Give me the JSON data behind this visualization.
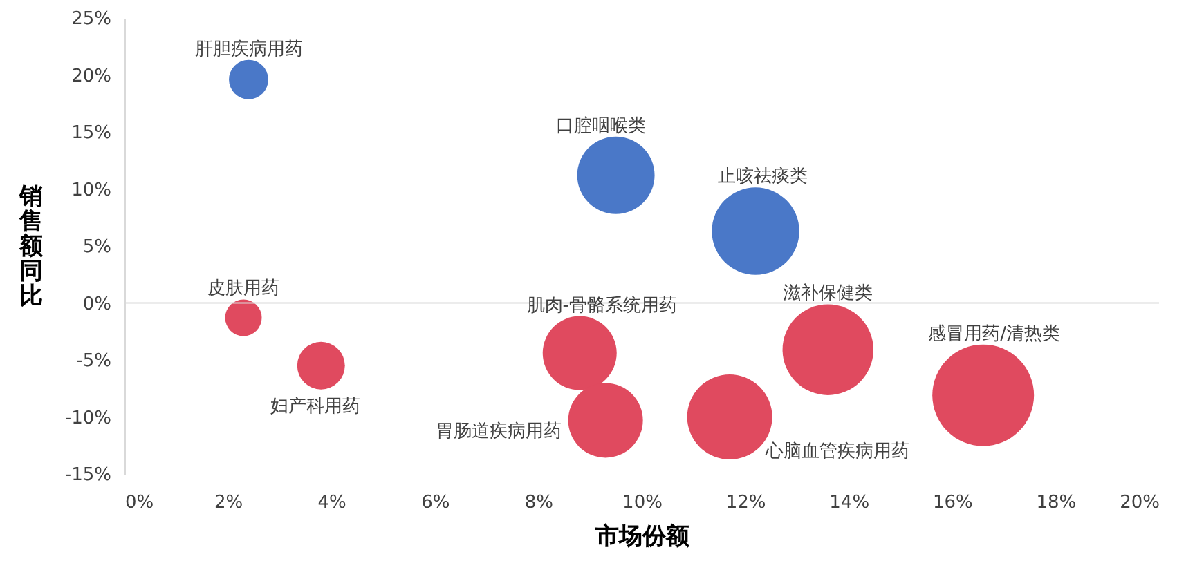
{
  "chart_data": {
    "type": "bubble",
    "xlabel": "市场份额",
    "ylabel": "销售额同比",
    "x": [
      2.4,
      9.5,
      12.2,
      2.3,
      3.8,
      8.8,
      9.3,
      11.7,
      13.6,
      16.6
    ],
    "values": [
      19.6,
      11.2,
      6.3,
      -1.3,
      -5.5,
      -4.4,
      -10.3,
      -10.0,
      -4.1,
      -8.1
    ],
    "sizes": [
      0.15,
      0.58,
      0.74,
      0.13,
      0.22,
      0.53,
      0.54,
      0.7,
      0.8,
      1
    ],
    "colors": [
      "#4a78c8",
      "#4a78c8",
      "#4a78c8",
      "#e04a5f",
      "#e04a5f",
      "#e04a5f",
      "#e04a5f",
      "#e04a5f",
      "#e04a5f",
      "#e04a5f"
    ],
    "annotations": [
      {
        "text": "肝胆疾病用药",
        "x": 2.4,
        "y": 19.6
      },
      {
        "text": "口腔咽喉类",
        "x": 9.5,
        "y": 11.2
      },
      {
        "text": "止咳祛痰类",
        "x": 12.2,
        "y": 6.3
      },
      {
        "text": "皮肤用药",
        "x": 2.3,
        "y": -1.3
      },
      {
        "text": "妇产科用药",
        "x": 3.8,
        "y": -5.5
      },
      {
        "text": "肌肉-骨骼系统用药",
        "x": 8.8,
        "y": -4.4
      },
      {
        "text": "胃肠道疾病用药",
        "x": 9.3,
        "y": -10.3
      },
      {
        "text": "心脑血管疾病用药",
        "x": 11.7,
        "y": -10.0
      },
      {
        "text": "滋补保健类",
        "x": 13.6,
        "y": -4.1
      },
      {
        "text": "感冒用药/清热类",
        "x": 16.6,
        "y": -8.1
      }
    ],
    "xlim": [
      0,
      20
    ],
    "xticks": [
      {
        "value": 0,
        "label": "0%"
      },
      {
        "value": 2,
        "label": "2%"
      },
      {
        "value": 4,
        "label": "4%"
      },
      {
        "value": 6,
        "label": "6%"
      },
      {
        "value": 8,
        "label": "8%"
      },
      {
        "value": 10,
        "label": "10%"
      },
      {
        "value": 12,
        "label": "12%"
      },
      {
        "value": 14,
        "label": "14%"
      },
      {
        "value": 16,
        "label": "16%"
      },
      {
        "value": 18,
        "label": "18%"
      },
      {
        "value": 20,
        "label": "20%"
      }
    ],
    "ylim": [
      -15,
      25
    ],
    "yticks": [
      {
        "value": -15,
        "label": "-15%"
      },
      {
        "value": -10,
        "label": "-10%"
      },
      {
        "value": -5,
        "label": "-5%"
      },
      {
        "value": 0,
        "label": "0%"
      },
      {
        "value": 5,
        "label": "5%"
      },
      {
        "value": 10,
        "label": "10%"
      },
      {
        "value": 15,
        "label": "15%"
      },
      {
        "value": 20,
        "label": "20%"
      },
      {
        "value": 25,
        "label": "25%"
      }
    ],
    "ref_lines": [
      {
        "axis": "y",
        "value": 0,
        "color": "#d9d9d9"
      }
    ],
    "grid": false
  }
}
